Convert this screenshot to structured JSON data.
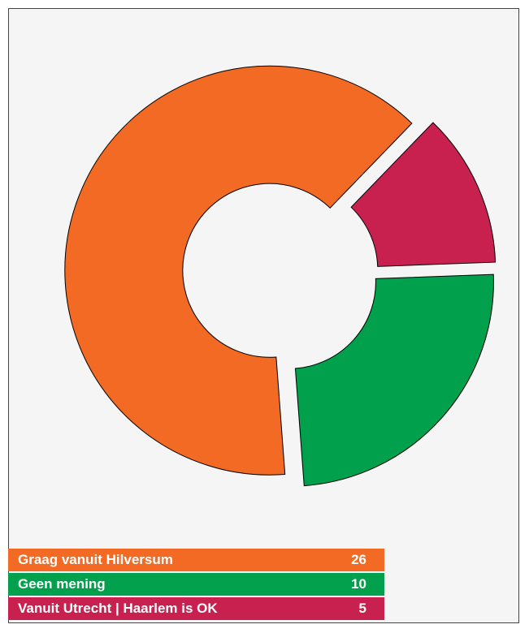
{
  "chart_data": {
    "type": "donut",
    "categories": [
      "Graag vanuit Hilversum",
      "Geen mening",
      "Vanuit Utrecht | Haarlem is OK"
    ],
    "values": [
      26,
      10,
      5
    ],
    "colors": [
      "#f26a23",
      "#00a04c",
      "#c8214f"
    ]
  }
}
